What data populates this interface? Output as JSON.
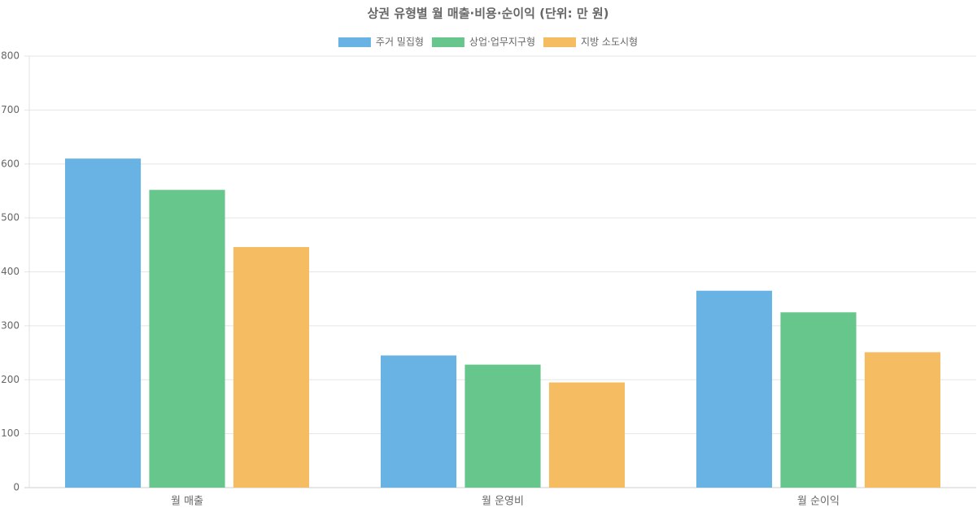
{
  "chart_data": {
    "type": "bar",
    "title": "상권 유형별 월 매출·비용·순이익 (단위: 만 원)",
    "categories": [
      "월 매출",
      "월 운영비",
      "월 순이익"
    ],
    "series": [
      {
        "name": "주거 밀집형",
        "color": "#68b3e3",
        "values": [
          610,
          245,
          365
        ]
      },
      {
        "name": "상업·업무지구형",
        "color": "#66c68c",
        "values": [
          552,
          228,
          325
        ]
      },
      {
        "name": "지방 소도시형",
        "color": "#f5bc62",
        "values": [
          446,
          195,
          251
        ]
      }
    ],
    "ylim": [
      0,
      800
    ],
    "yticks": [
      0,
      100,
      200,
      300,
      400,
      500,
      600,
      700,
      800
    ],
    "grid": true,
    "legend": "top"
  }
}
